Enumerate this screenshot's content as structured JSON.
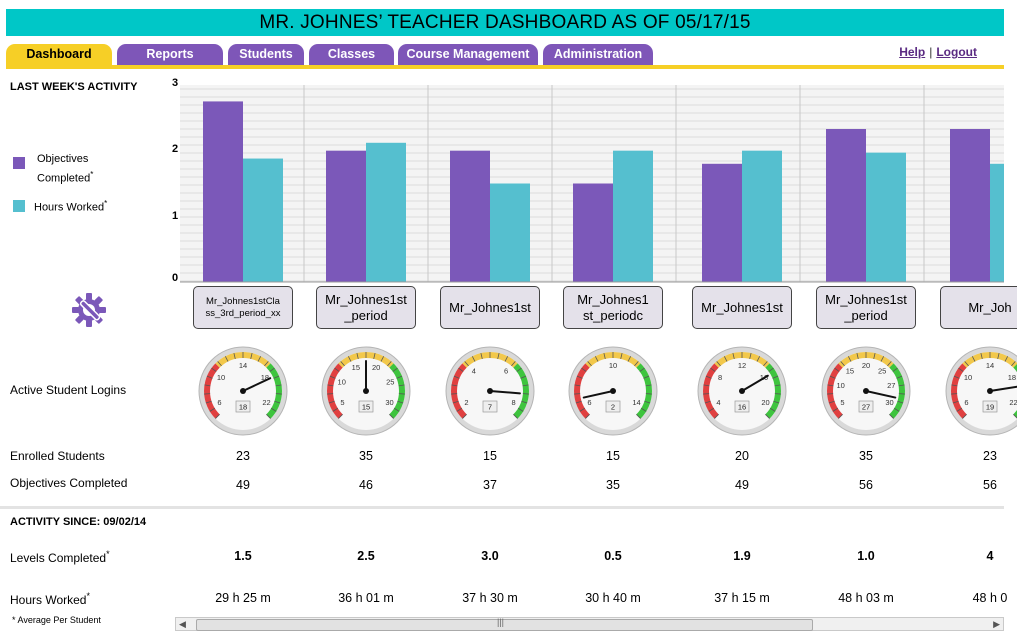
{
  "header": {
    "title": "MR. JOHNES’ TEACHER DASHBOARD AS OF 05/17/15"
  },
  "tabs": [
    {
      "label": "Dashboard",
      "active": true
    },
    {
      "label": "Reports"
    },
    {
      "label": "Students"
    },
    {
      "label": "Classes"
    },
    {
      "label": "Course Management"
    },
    {
      "label": "Administration"
    }
  ],
  "links": {
    "help": "Help",
    "sep": "|",
    "logout": "Logout"
  },
  "section1": {
    "title": "LAST WEEK'S ACTIVITY"
  },
  "legend": {
    "objectives": "Objectives Completed",
    "objectives_mark": "*",
    "hours": "Hours Worked",
    "hours_mark": "*"
  },
  "colors": {
    "objectives": "#7b58b9",
    "hours": "#55bfcf",
    "accent": "#00c7c7",
    "tab": "#7e56b8",
    "tab_active": "#f6cf26"
  },
  "row_labels": {
    "logins": "Active Student Logins",
    "enrolled": "Enrolled Students",
    "objectives": "Objectives Completed",
    "levels": "Levels Completed",
    "levels_mark": "*",
    "hours": "Hours Worked",
    "hours_mark": "*"
  },
  "section2": {
    "title": "ACTIVITY SINCE: 09/02/14"
  },
  "footnote": "* Average Per Student",
  "icons": {
    "settings": "gear-wrench-icon"
  },
  "chart_data": {
    "type": "bar",
    "ylim": [
      0,
      3
    ],
    "yticks": [
      "0",
      "1",
      "2",
      "3"
    ],
    "series": [
      {
        "name": "Objectives Completed",
        "values": [
          2.75,
          2.0,
          2.0,
          1.5,
          1.8,
          2.33,
          2.33
        ]
      },
      {
        "name": "Hours Worked",
        "values": [
          1.88,
          2.12,
          1.5,
          2.0,
          2.0,
          1.97,
          1.8
        ]
      }
    ]
  },
  "classes": [
    {
      "name": "Mr_Johnes1stClass_3rd_period_xx",
      "small": true,
      "display": "Mr_Johnes1stCla ss_3rd_period_xx",
      "gauge": {
        "ticks": [
          "6",
          "10",
          "14",
          "18",
          "22"
        ],
        "value": "18",
        "needle": 0.74
      },
      "enrolled": "23",
      "objectives": "49",
      "levels": "1.5",
      "hours": "29 h 25 m"
    },
    {
      "name": "Mr_Johnes1st_period",
      "display": "Mr_Johnes1st _period",
      "gauge": {
        "ticks": [
          "5",
          "10",
          "15",
          "20",
          "25",
          "30"
        ],
        "value": "15",
        "needle": 0.5
      },
      "enrolled": "35",
      "objectives": "46",
      "levels": "2.5",
      "hours": "36 h 01 m"
    },
    {
      "name": "Mr_Johnes1st",
      "display": "Mr_Johnes1st",
      "gauge": {
        "ticks": [
          "2",
          "4",
          "6",
          "8"
        ],
        "value": "7",
        "needle": 0.85
      },
      "enrolled": "15",
      "objectives": "37",
      "levels": "3.0",
      "hours": "37 h 30 m"
    },
    {
      "name": "Mr_Johnes1st_periodc",
      "display": "Mr_Johnes1 st_periodc",
      "gauge": {
        "ticks": [
          "6",
          "10",
          "14"
        ],
        "value": "2",
        "needle": 0.12
      },
      "enrolled": "15",
      "objectives": "35",
      "levels": "0.5",
      "hours": "30 h 40 m"
    },
    {
      "name": "Mr_Johnes1st",
      "display": "Mr_Johnes1st",
      "gauge": {
        "ticks": [
          "4",
          "8",
          "12",
          "16",
          "20"
        ],
        "value": "16",
        "needle": 0.72
      },
      "enrolled": "20",
      "objectives": "49",
      "levels": "1.9",
      "hours": "37 h 15 m"
    },
    {
      "name": "Mr_Johnes1st_period",
      "display": "Mr_Johnes1st _period",
      "gauge": {
        "ticks": [
          "5",
          "10",
          "15",
          "20",
          "25",
          "27",
          "30"
        ],
        "value": "27",
        "needle": 0.88
      },
      "enrolled": "35",
      "objectives": "56",
      "levels": "1.0",
      "hours": "48 h 03 m"
    },
    {
      "name": "Mr_Joh",
      "display": "Mr_Joh",
      "gauge": {
        "ticks": [
          "6",
          "10",
          "14",
          "18",
          "22"
        ],
        "value": "19",
        "needle": 0.8
      },
      "enrolled": "23",
      "objectives": "56",
      "levels": "4",
      "hours": "48 h 0"
    }
  ],
  "scroll": {
    "thumb_label": "|||"
  }
}
